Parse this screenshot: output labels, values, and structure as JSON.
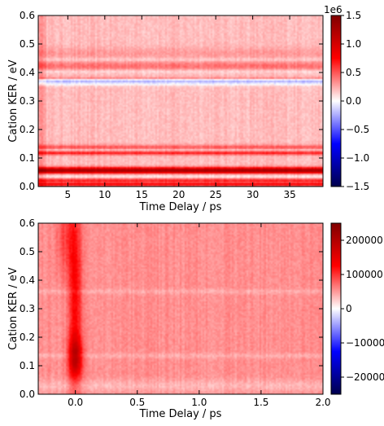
{
  "chart_data": [
    {
      "type": "heatmap",
      "title": "",
      "xlabel": "Time Delay / ps",
      "ylabel": "Cation KER / eV",
      "xlim": [
        1,
        39.5
      ],
      "ylim": [
        0,
        0.6
      ],
      "xticks": [
        5,
        10,
        15,
        20,
        25,
        30,
        35
      ],
      "yticks": [
        0.0,
        0.1,
        0.2,
        0.3,
        0.4,
        0.5,
        0.6
      ],
      "xtick_labels": [
        "5",
        "10",
        "15",
        "20",
        "25",
        "30",
        "35"
      ],
      "ytick_labels": [
        "0.0",
        "0.1",
        "0.2",
        "0.3",
        "0.4",
        "0.5",
        "0.6"
      ],
      "colorbar": {
        "colormap": "seismic",
        "vmin": -1.5,
        "vmax": 1.5,
        "ticks": [
          -1.5,
          -1.0,
          -0.5,
          0.0,
          0.5,
          1.0,
          1.5
        ],
        "tick_labels": [
          "−1.5",
          "−1.0",
          "−0.5",
          "0.0",
          "0.5",
          "1.0",
          "1.5"
        ],
        "offset_label": "1e6"
      },
      "baseline_fraction": 0.13,
      "features": [
        {
          "ker": 0.362,
          "width": 0.006,
          "amplitude": -0.17
        },
        {
          "ker": 0.372,
          "width": 0.004,
          "amplitude": -0.28
        },
        {
          "ker": 0.378,
          "width": 0.004,
          "amplitude": 0.16
        },
        {
          "ker": 0.422,
          "width": 0.012,
          "amplitude": 0.15
        },
        {
          "ker": 0.404,
          "width": 0.005,
          "amplitude": -0.09
        },
        {
          "ker": 0.445,
          "width": 0.004,
          "amplitude": -0.07
        },
        {
          "ker": 0.468,
          "width": 0.014,
          "amplitude": 0.07
        },
        {
          "ker": 0.118,
          "width": 0.005,
          "amplitude": 0.33
        },
        {
          "ker": 0.128,
          "width": 0.004,
          "amplitude": -0.12
        },
        {
          "ker": 0.137,
          "width": 0.006,
          "amplitude": 0.22
        },
        {
          "ker": 0.06,
          "width": 0.006,
          "amplitude": 0.52
        },
        {
          "ker": 0.052,
          "width": 0.005,
          "amplitude": 0.42
        },
        {
          "ker": 0.035,
          "width": 0.003,
          "amplitude": -0.1
        },
        {
          "ker": 0.022,
          "width": 0.004,
          "amplitude": 0.32
        },
        {
          "ker": 0.008,
          "width": 0.005,
          "amplitude": 0.4
        }
      ]
    },
    {
      "type": "heatmap",
      "title": "",
      "xlabel": "Time Delay / ps",
      "ylabel": "Cation KER / eV",
      "xlim": [
        -0.3,
        2.0
      ],
      "ylim": [
        0,
        0.6
      ],
      "xticks": [
        0.0,
        0.5,
        1.0,
        1.5,
        2.0
      ],
      "yticks": [
        0.0,
        0.1,
        0.2,
        0.3,
        0.4,
        0.5,
        0.6
      ],
      "xtick_labels": [
        "0.0",
        "0.5",
        "1.0",
        "1.5",
        "2.0"
      ],
      "ytick_labels": [
        "0.0",
        "0.1",
        "0.2",
        "0.3",
        "0.4",
        "0.5",
        "0.6"
      ],
      "colorbar": {
        "colormap": "seismic",
        "vmin": -250000,
        "vmax": 250000,
        "ticks": [
          -200000,
          -100000,
          0,
          100000,
          200000
        ],
        "tick_labels": [
          "−200000",
          "−100000",
          "0",
          "100000",
          "200000"
        ]
      },
      "baseline_fraction": 0.22,
      "features": [
        {
          "center_delay": 0.0,
          "delay_width": 0.04,
          "ker_center": 0.13,
          "ker_width": 0.05,
          "amplitude": 0.4
        },
        {
          "center_delay": 0.0,
          "delay_width": 0.035,
          "ker_center": 0.35,
          "ker_width": 0.25,
          "amplitude": 0.3
        },
        {
          "center_delay": -0.08,
          "delay_width": 0.05,
          "ker_center": 0.55,
          "ker_width": 0.1,
          "amplitude": 0.15
        },
        {
          "ker": 0.135,
          "width": 0.006,
          "amplitude": -0.06
        },
        {
          "ker": 0.36,
          "width": 0.006,
          "amplitude": -0.06
        },
        {
          "ker": 0.03,
          "width": 0.015,
          "amplitude": -0.08
        }
      ]
    }
  ]
}
